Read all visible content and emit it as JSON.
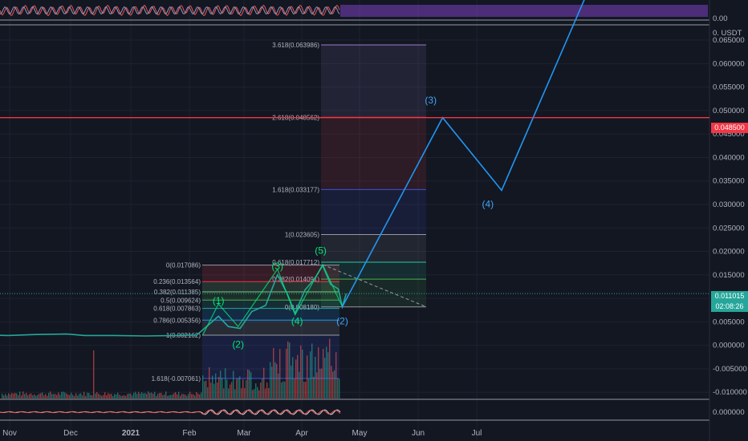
{
  "chart_data": {
    "type": "line",
    "symbol_unit": "USDT",
    "price_axis": {
      "ticks": [
        "0.065000",
        "0.060000",
        "0.055000",
        "0.050000",
        "0.045000",
        "0.040000",
        "0.035000",
        "0.030000",
        "0.025000",
        "0.020000",
        "0.015000",
        "0.010000",
        "0.005000",
        "0.000000",
        "-0.005000",
        "-0.010000"
      ],
      "top_label": "0. USDT",
      "ylim": [
        -0.0115,
        0.0715
      ]
    },
    "oscillator_top": {
      "tick": "0.00"
    },
    "oscillator_bottom": {
      "tick": "0.000000"
    },
    "x_axis": {
      "ticks": [
        "Nov",
        "Dec",
        "2021",
        "Feb",
        "Mar",
        "Apr",
        "May",
        "Jun",
        "Jul"
      ]
    },
    "horizontal_line": {
      "label": "0.048500",
      "value": 0.0485,
      "color": "#f23645"
    },
    "current_price": {
      "value": "0.011015",
      "countdown": "02:08:26",
      "color": "#26a69a"
    },
    "fib_extension": [
      {
        "label": "3.618(0.063986)",
        "value": 0.063986,
        "color": "#9c7bd1"
      },
      {
        "label": "2.618(0.048562)",
        "value": 0.048562,
        "color": "#f23645"
      },
      {
        "label": "1.618(0.033177)",
        "value": 0.033177,
        "color": "#3f51d9"
      },
      {
        "label": "1(0.023605)",
        "value": 0.023605,
        "color": "#9598a1"
      },
      {
        "label": "0.618(0.017712)",
        "value": 0.017712,
        "color": "#26c6a0"
      },
      {
        "label": "0.382(0.014091)",
        "value": 0.014091,
        "color": "#4caf50"
      },
      {
        "label": "0(0.008180)",
        "value": 0.00818,
        "color": "#9598a1"
      }
    ],
    "fib_retracement": [
      {
        "label": "0(0.017086)",
        "value": 0.017086,
        "color": "#9598a1"
      },
      {
        "label": "0.236(0.013564)",
        "value": 0.013564,
        "color": "#f23645"
      },
      {
        "label": "0.382(0.011385)",
        "value": 0.011385,
        "color": "#81c784"
      },
      {
        "label": "0.5(0.009624)",
        "value": 0.009624,
        "color": "#4caf50"
      },
      {
        "label": "0.618(0.007863)",
        "value": 0.007863,
        "color": "#26a69a"
      },
      {
        "label": "0.786(0.005356)",
        "value": 0.005356,
        "color": "#2196f3"
      },
      {
        "label": "1(0.002162)",
        "value": 0.002162,
        "color": "#9598a1"
      },
      {
        "label": "1.618(-0.007061)",
        "value": -0.007061,
        "color": "#3f51d9"
      }
    ],
    "wave_labels_small": [
      {
        "label": "(1)",
        "date": "2021-02-16",
        "value": 0.0088
      },
      {
        "label": "(2)",
        "date": "2021-02-26",
        "value": -0.0005
      },
      {
        "label": "(3)",
        "date": "2021-03-18",
        "value": 0.0162
      },
      {
        "label": "(4)",
        "date": "2021-03-28",
        "value": 0.0045
      },
      {
        "label": "(5)",
        "date": "2021-04-09",
        "value": 0.0195
      }
    ],
    "wave_labels_large": [
      {
        "label": "(2)",
        "date": "2021-04-20",
        "value": 0.0045
      },
      {
        "label": "(3)",
        "date": "2021-06-04",
        "value": 0.0515
      },
      {
        "label": "(4)",
        "date": "2021-07-03",
        "value": 0.0294
      }
    ],
    "projection": {
      "color": "#2196f3",
      "points": [
        {
          "date": "2021-04-20",
          "value": 0.0082
        },
        {
          "date": "2021-06-10",
          "value": 0.0485
        },
        {
          "date": "2021-07-10",
          "value": 0.033
        },
        {
          "date": "2021-08-22",
          "value": 0.0745
        }
      ]
    },
    "price_history": [
      {
        "date": "2020-10-20",
        "value": 0.0022
      },
      {
        "date": "2020-11-01",
        "value": 0.0021
      },
      {
        "date": "2020-11-15",
        "value": 0.0023
      },
      {
        "date": "2020-12-01",
        "value": 0.0024
      },
      {
        "date": "2020-12-10",
        "value": 0.0021
      },
      {
        "date": "2020-12-25",
        "value": 0.0021
      },
      {
        "date": "2021-01-10",
        "value": 0.002
      },
      {
        "date": "2021-01-25",
        "value": 0.0021
      },
      {
        "date": "2021-02-05",
        "value": 0.0022
      },
      {
        "date": "2021-02-16",
        "value": 0.0062
      },
      {
        "date": "2021-02-21",
        "value": 0.004
      },
      {
        "date": "2021-02-27",
        "value": 0.0036
      },
      {
        "date": "2021-03-05",
        "value": 0.0072
      },
      {
        "date": "2021-03-12",
        "value": 0.0085
      },
      {
        "date": "2021-03-18",
        "value": 0.015
      },
      {
        "date": "2021-03-23",
        "value": 0.011
      },
      {
        "date": "2021-03-27",
        "value": 0.0068
      },
      {
        "date": "2021-04-01",
        "value": 0.0118
      },
      {
        "date": "2021-04-06",
        "value": 0.0142
      },
      {
        "date": "2021-04-10",
        "value": 0.017
      },
      {
        "date": "2021-04-14",
        "value": 0.013
      },
      {
        "date": "2021-04-18",
        "value": 0.012
      },
      {
        "date": "2021-04-20",
        "value": 0.0082
      },
      {
        "date": "2021-04-22",
        "value": 0.011
      }
    ]
  }
}
